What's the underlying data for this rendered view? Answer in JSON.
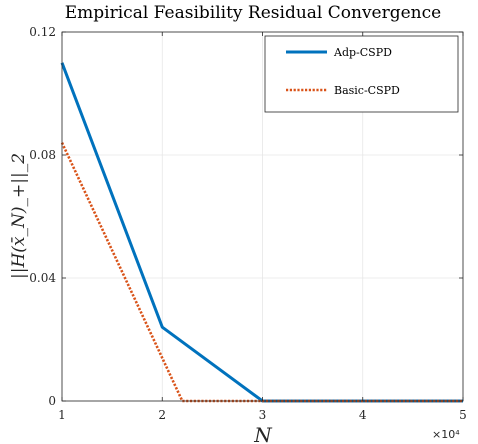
{
  "chart_data": {
    "type": "line",
    "title": "Empirical Feasibility Residual Convergence",
    "xlabel": "N",
    "ylabel": "||H(x̄_N)_+||_2",
    "x_multiplier_label": "×10⁴",
    "xlim": [
      1,
      5
    ],
    "ylim": [
      0,
      0.12
    ],
    "xticks": [
      1,
      2,
      3,
      4,
      5
    ],
    "xtick_labels": [
      "1",
      "2",
      "3",
      "4",
      "5"
    ],
    "yticks": [
      0,
      0.04,
      0.08,
      0.12
    ],
    "ytick_labels": [
      "0",
      "0.04",
      "0.08",
      "0.12"
    ],
    "grid": true,
    "legend_position": "top-right",
    "series": [
      {
        "name": "Adp-CSPD",
        "color": "#0072BD",
        "style": "solid",
        "x": [
          1,
          2,
          3,
          4,
          5
        ],
        "y": [
          0.11,
          0.024,
          0,
          0,
          0
        ]
      },
      {
        "name": "Basic-CSPD",
        "color": "#D95319",
        "style": "dotted",
        "x": [
          1,
          2.2,
          3,
          4,
          5
        ],
        "y": [
          0.084,
          0,
          0,
          0,
          0
        ]
      }
    ]
  }
}
